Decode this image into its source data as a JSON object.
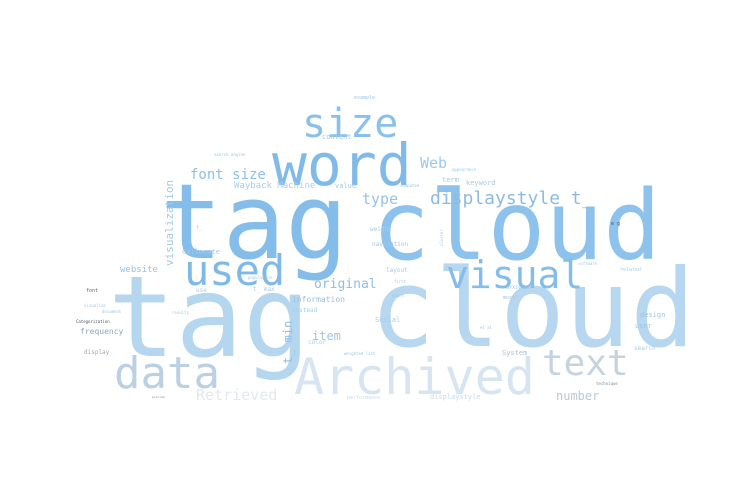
{
  "words": {
    "tagcloud_big": "tagcloud",
    "tag_left": "tag",
    "cloud_left": "cloud",
    "tag_huge": "tag",
    "cloud_huge": "cloud",
    "word": "word",
    "size": "size",
    "used": "used",
    "visual": "visual",
    "data": "data",
    "archived": "Archived",
    "text": "text",
    "displaystyle_t": "displaystyle t_",
    "font_size": "font size",
    "type": "type",
    "web": "Web",
    "wayback": "Wayback Machine",
    "visualization": "visualization",
    "item": "item",
    "original": "original",
    "t_min": "t_ min",
    "number": "number",
    "retrieved": "Retrieved",
    "website": "website",
    "frequency": "frequency",
    "information": "information",
    "user": "user",
    "design": "design",
    "keyword": "keyword",
    "term": "term",
    "content": "content",
    "value": "value",
    "navigation": "navigation",
    "layout": "layout",
    "weight": "weight",
    "collocate": "Collocate",
    "t_max": "t_ max",
    "instead": "instead",
    "social": "Social",
    "represent": "represent",
    "color": "color",
    "system": "System",
    "search": "search",
    "display": "display",
    "related": "related",
    "example": "example",
    "displaystyle": "displaystyle",
    "use": "use",
    "performance": "performance",
    "font": "font",
    "visualize": "visualize",
    "document": "document",
    "categorization": "Categorization",
    "software": "software",
    "arxiv": "arXiv.cs",
    "cluster": "cluster",
    "first": "first",
    "count": "count",
    "search_engine": "search engine",
    "technique": "technique",
    "population": "population",
    "weighted_list": "weighted list",
    "word_pairs": "word pairs",
    "e_g": "e g",
    "provide": "provide",
    "appearance": "appearance",
    "computed": "computed",
    "most": "most",
    "result": "results",
    "t_": "t_",
    "min": "t_ max",
    "tag_alt": "tag",
    "et_al": "et al"
  }
}
